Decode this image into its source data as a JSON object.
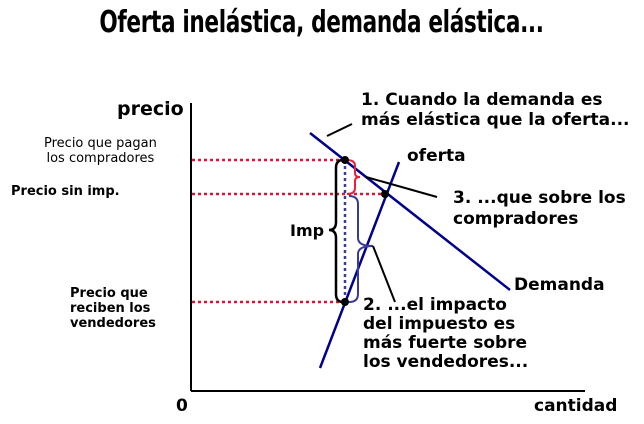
{
  "title": "Oferta inelástica, demanda elástica...",
  "axes": {
    "y_label": "precio",
    "x_label": "cantidad",
    "origin": "0"
  },
  "price_labels": {
    "buyers": [
      "Precio que pagan",
      "los compradores"
    ],
    "no_tax": "Precio sin imp.",
    "sellers": [
      "Precio que",
      "reciben los",
      "vendedores"
    ]
  },
  "curves": {
    "supply": "oferta",
    "demand": "Demanda"
  },
  "tax_label": "Imp",
  "notes": {
    "n1": [
      "1. Cuando la demanda es",
      "más elástica que la oferta..."
    ],
    "n2": [
      "2. ...el impacto",
      "del impuesto es",
      "más fuerte sobre",
      "los vendedores..."
    ],
    "n3": [
      "3. ...que sobre los",
      "compradores"
    ]
  },
  "colors": {
    "curves": "#00008b",
    "guides": "#dc143c",
    "buyer_brace": "#e8203a",
    "seller_brace": "#3a3a9a",
    "axes": "#000000"
  }
}
